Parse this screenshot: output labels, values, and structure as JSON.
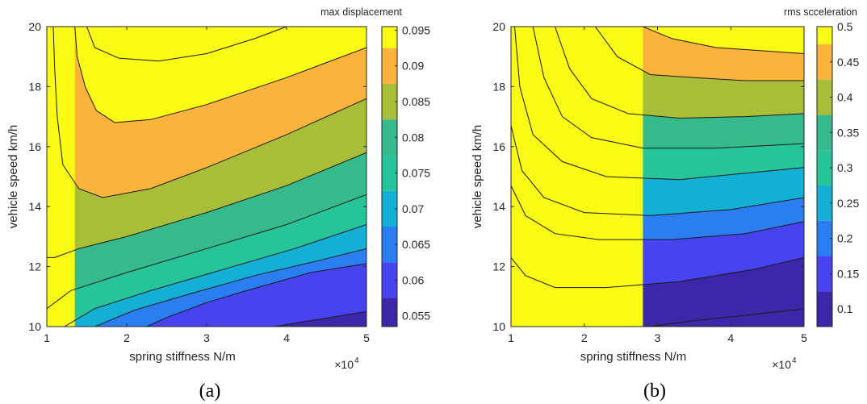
{
  "palette": [
    "#3e26a8",
    "#4743f0",
    "#2a7ef2",
    "#14afd5",
    "#27c49a",
    "#36ba8c",
    "#a8be38",
    "#fbb33c",
    "#f9fb14"
  ],
  "chart_data": [
    {
      "type": "heatmap",
      "subtype": "filled-contour",
      "caption": "(a)",
      "xlabel": "spring stiffness N/m",
      "ylabel": "vehicle speed km/h",
      "xlim": [
        1,
        5
      ],
      "ylim": [
        10,
        20
      ],
      "xticks": [
        "1",
        "2",
        "3",
        "4",
        "5"
      ],
      "yticks": [
        "10",
        "12",
        "14",
        "16",
        "18",
        "20"
      ],
      "x_exponent": "×10",
      "x_exponent_power": "4",
      "colorbar": {
        "title": "max displacement",
        "range": [
          0.0535,
          0.0955
        ],
        "ticks": [
          "0.055",
          "0.06",
          "0.065",
          "0.07",
          "0.075",
          "0.08",
          "0.085",
          "0.09",
          "0.095"
        ],
        "levels": [
          0.0575,
          0.0625,
          0.0675,
          0.0725,
          0.0775,
          0.0825,
          0.0875,
          0.0925
        ]
      },
      "contours": [
        {
          "level": 0.0925,
          "points": [
            [
              1.35,
              20
            ],
            [
              1.38,
              19
            ],
            [
              1.48,
              18
            ],
            [
              1.62,
              17.2
            ],
            [
              1.85,
              16.8
            ],
            [
              2.3,
              16.9
            ],
            [
              3.0,
              17.4
            ],
            [
              4.0,
              18.3
            ],
            [
              5.0,
              19.3
            ]
          ]
        },
        {
          "level": 0.0875,
          "points": [
            [
              1.08,
              20
            ],
            [
              1.1,
              18.5
            ],
            [
              1.13,
              17
            ],
            [
              1.2,
              15.4
            ],
            [
              1.4,
              14.6
            ],
            [
              1.7,
              14.3
            ],
            [
              2.3,
              14.6
            ],
            [
              3.0,
              15.3
            ],
            [
              4.0,
              16.4
            ],
            [
              5.0,
              17.6
            ]
          ]
        },
        {
          "level": 0.0825,
          "points": [
            [
              1,
              12.3
            ],
            [
              1.1,
              12.3
            ],
            [
              1.4,
              12.6
            ],
            [
              2.0,
              13.0
            ],
            [
              3.0,
              13.8
            ],
            [
              4.0,
              14.7
            ],
            [
              5.0,
              15.8
            ]
          ]
        },
        {
          "level": 0.0775,
          "points": [
            [
              1,
              10.6
            ],
            [
              1.3,
              11.2
            ],
            [
              2.0,
              11.8
            ],
            [
              3.0,
              12.6
            ],
            [
              4.0,
              13.4
            ],
            [
              5.0,
              14.4
            ]
          ]
        },
        {
          "level": 0.0725,
          "points": [
            [
              1.22,
              10
            ],
            [
              1.6,
              10.6
            ],
            [
              2.3,
              11.2
            ],
            [
              3.2,
              11.9
            ],
            [
              4.1,
              12.6
            ],
            [
              5.0,
              13.4
            ]
          ]
        },
        {
          "level": 0.0675,
          "points": [
            [
              1.6,
              10
            ],
            [
              2.1,
              10.55
            ],
            [
              2.8,
              11.1
            ],
            [
              3.6,
              11.7
            ],
            [
              4.4,
              12.2
            ],
            [
              5.0,
              12.6
            ]
          ]
        },
        {
          "level": 0.0625,
          "points": [
            [
              2.25,
              10
            ],
            [
              2.5,
              10.3
            ],
            [
              3.0,
              10.8
            ],
            [
              3.5,
              11.2
            ],
            [
              4.3,
              11.8
            ],
            [
              5.0,
              12.1
            ]
          ]
        },
        {
          "level": 0.0575,
          "points": [
            [
              3.85,
              10
            ],
            [
              4.3,
              10.2
            ],
            [
              5.0,
              10.5
            ]
          ]
        }
      ],
      "annotations": [
        {
          "level": 0.0925,
          "points": [
            [
              1.5,
              20
            ],
            [
              1.6,
              19.3
            ],
            [
              1.9,
              18.95
            ],
            [
              2.4,
              18.85
            ],
            [
              3.0,
              19.1
            ],
            [
              3.6,
              19.6
            ],
            [
              4.0,
              20
            ]
          ]
        }
      ]
    },
    {
      "type": "heatmap",
      "subtype": "filled-contour",
      "caption": "(b)",
      "xlabel": "spring stiffness N/m",
      "ylabel": "vehicle speed km/h",
      "xlim": [
        1,
        5
      ],
      "ylim": [
        10,
        20
      ],
      "xticks": [
        "1",
        "2",
        "3",
        "4",
        "5"
      ],
      "yticks": [
        "10",
        "12",
        "14",
        "16",
        "18",
        "20"
      ],
      "x_exponent": "×10",
      "x_exponent_power": "4",
      "colorbar": {
        "title": "rms scceleration",
        "range": [
          0.075,
          0.5
        ],
        "ticks": [
          "0.1",
          "0.15",
          "0.2",
          "0.25",
          "0.3",
          "0.35",
          "0.4",
          "0.45",
          "0.5"
        ],
        "levels": [
          0.125,
          0.175,
          0.225,
          0.275,
          0.325,
          0.375,
          0.425,
          0.475
        ]
      },
      "contours": [
        {
          "level": 0.475,
          "points": [
            [
              2.8,
              20
            ],
            [
              3.2,
              19.6
            ],
            [
              3.8,
              19.3
            ],
            [
              4.4,
              19.2
            ],
            [
              5.0,
              19.1
            ]
          ]
        },
        {
          "level": 0.425,
          "points": [
            [
              2.15,
              20
            ],
            [
              2.45,
              19.0
            ],
            [
              2.9,
              18.4
            ],
            [
              3.5,
              18.3
            ],
            [
              4.2,
              18.2
            ],
            [
              5.0,
              18.2
            ]
          ]
        },
        {
          "level": 0.375,
          "points": [
            [
              1.6,
              20
            ],
            [
              1.8,
              18.6
            ],
            [
              2.1,
              17.6
            ],
            [
              2.6,
              17.1
            ],
            [
              3.3,
              16.95
            ],
            [
              4.2,
              17.0
            ],
            [
              5.0,
              17.1
            ]
          ]
        },
        {
          "level": 0.325,
          "points": [
            [
              1.3,
              20
            ],
            [
              1.45,
              18.3
            ],
            [
              1.7,
              17.0
            ],
            [
              2.1,
              16.3
            ],
            [
              2.8,
              15.95
            ],
            [
              3.8,
              15.95
            ],
            [
              5.0,
              16.1
            ]
          ]
        },
        {
          "level": 0.275,
          "points": [
            [
              1.05,
              20
            ],
            [
              1.12,
              18.0
            ],
            [
              1.3,
              16.4
            ],
            [
              1.7,
              15.5
            ],
            [
              2.3,
              15.0
            ],
            [
              3.3,
              14.9
            ],
            [
              5.0,
              15.3
            ]
          ]
        },
        {
          "level": 0.225,
          "points": [
            [
              1,
              16.7
            ],
            [
              1.15,
              15.2
            ],
            [
              1.45,
              14.3
            ],
            [
              2.0,
              13.8
            ],
            [
              2.9,
              13.7
            ],
            [
              4.0,
              13.9
            ],
            [
              5.0,
              14.3
            ]
          ]
        },
        {
          "level": 0.175,
          "points": [
            [
              1,
              14.7
            ],
            [
              1.2,
              13.7
            ],
            [
              1.6,
              13.1
            ],
            [
              2.2,
              12.9
            ],
            [
              3.2,
              12.9
            ],
            [
              4.2,
              13.1
            ],
            [
              5.0,
              13.5
            ]
          ]
        },
        {
          "level": 0.125,
          "points": [
            [
              1,
              12.3
            ],
            [
              1.2,
              11.7
            ],
            [
              1.6,
              11.3
            ],
            [
              2.3,
              11.3
            ],
            [
              3.3,
              11.5
            ],
            [
              4.3,
              11.9
            ],
            [
              5.0,
              12.3
            ]
          ]
        }
      ],
      "annotations": [
        {
          "level": 0.075,
          "points": [
            [
              2.9,
              10
            ],
            [
              3.5,
              10.2
            ],
            [
              4.3,
              10.4
            ],
            [
              5.0,
              10.6
            ]
          ]
        }
      ]
    }
  ]
}
